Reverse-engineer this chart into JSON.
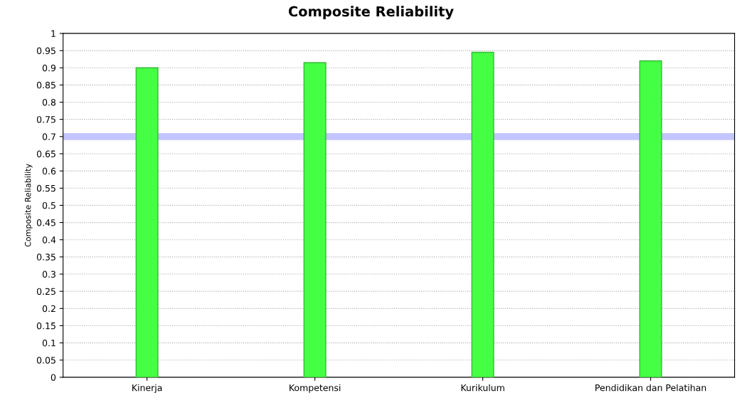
{
  "chart_data": {
    "type": "bar",
    "title": "Composite Reliability",
    "ylabel": "Composite Reliability",
    "categories": [
      "Kinerja",
      "Kompetensi",
      "Kurikulum",
      "Pendidikan dan Pelatihan"
    ],
    "values": [
      0.9,
      0.915,
      0.945,
      0.92
    ],
    "color": "#44ff44",
    "ylim": [
      0,
      1
    ],
    "yticks": [
      0,
      0.05,
      0.1,
      0.15,
      0.2,
      0.25,
      0.3,
      0.35,
      0.4,
      0.45,
      0.5,
      0.55,
      0.6,
      0.65,
      0.7,
      0.75,
      0.8,
      0.85,
      0.9,
      0.95,
      1
    ],
    "ref_lines": [
      {
        "axis": "y",
        "value": 0.7,
        "color": "#c4c4ff"
      }
    ],
    "grid": "y"
  }
}
